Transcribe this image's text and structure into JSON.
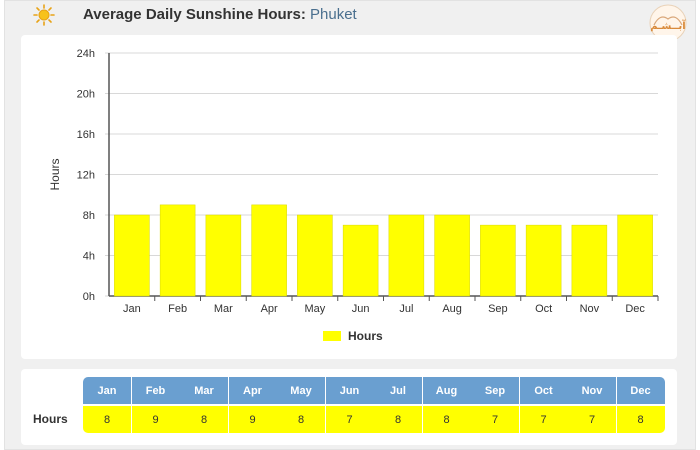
{
  "header": {
    "title": "Average Daily Sunshine Hours:",
    "location": "Phuket",
    "icon": "sun-icon",
    "logo_text": "آبــشـم",
    "logo_icon": "brand-logo"
  },
  "colors": {
    "bar": "#ffff00",
    "bar_border": "#d6d600",
    "table_header": "#6a9fd0",
    "table_value": "#ffff00",
    "grid": "#d8d8d8"
  },
  "chart_data": {
    "type": "bar",
    "categories": [
      "Jan",
      "Feb",
      "Mar",
      "Apr",
      "May",
      "Jun",
      "Jul",
      "Aug",
      "Sep",
      "Oct",
      "Nov",
      "Dec"
    ],
    "series": [
      {
        "name": "Hours",
        "values": [
          8,
          9,
          8,
          9,
          8,
          7,
          8,
          8,
          7,
          7,
          7,
          8
        ]
      }
    ],
    "ylabel": "Hours",
    "ylim": [
      0,
      24
    ],
    "yticks": [
      "0h",
      "4h",
      "8h",
      "12h",
      "16h",
      "20h",
      "24h"
    ],
    "grid": true,
    "legend_position": "bottom-center"
  },
  "table": {
    "row_label": "Hours",
    "headers": [
      "Jan",
      "Feb",
      "Mar",
      "Apr",
      "May",
      "Jun",
      "Jul",
      "Aug",
      "Sep",
      "Oct",
      "Nov",
      "Dec"
    ],
    "values": [
      "8",
      "9",
      "8",
      "9",
      "8",
      "7",
      "8",
      "8",
      "7",
      "7",
      "7",
      "8"
    ]
  }
}
